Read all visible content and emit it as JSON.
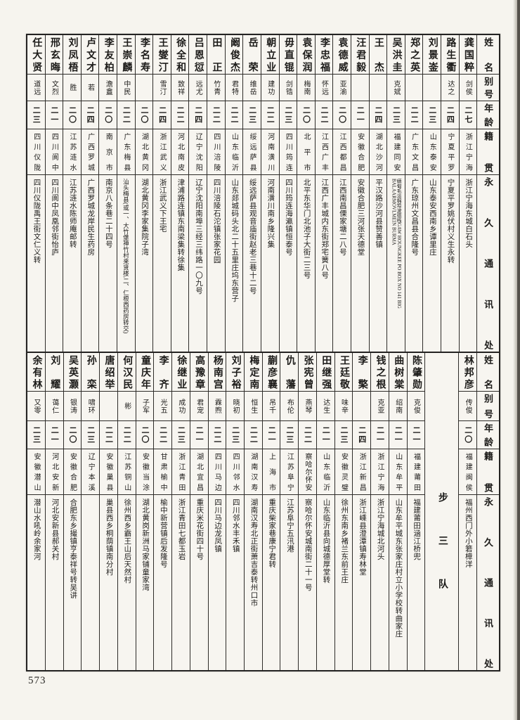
{
  "page_number": "573",
  "header_labels": {
    "name": "姓名",
    "alias": "别号",
    "age": "年龄",
    "native": "籍贯",
    "address": "永久通讯处"
  },
  "unit_divider": "步三队",
  "tables": [
    {
      "entries": [
        {
          "name": "龚国粹",
          "alias": "剑侯",
          "age": "二七",
          "native": "浙江宁海",
          "address": "浙江宁海东城白石头"
        },
        {
          "name": "路生衢",
          "alias": "达之",
          "age": "二四",
          "native": "宁夏平罗",
          "address": "宁夏平罗姚伏村义生永转"
        },
        {
          "name": "刘景崟",
          "alias": "",
          "age": "二三",
          "native": "山东泰安",
          "address": "山东泰安西南乡谭里庄"
        },
        {
          "name": "郑之英",
          "alias": "",
          "age": "二二",
          "native": "广东文昌",
          "address": "广东琼州文昌县合隆号"
        },
        {
          "name": "吴洪圭",
          "alias": "克斌",
          "age": "二三",
          "native": "福建同安",
          "address": "缅甸毛淡棉埠波德栈GAW HOUNGKEE PO BOX NO 141 BIG BALAARMOVLMEIN BURMA"
        },
        {
          "name": "王杰",
          "alias": "",
          "age": "二四",
          "native": "湖北沙河",
          "address": "平汉路沙河县赞善镇"
        },
        {
          "name": "汪君毅",
          "alias": "",
          "age": "二一",
          "native": "安徽合肥",
          "address": "安徽合肥三河张天德堂"
        },
        {
          "name": "袁德威",
          "alias": "亚渝",
          "age": "二〇",
          "native": "江西都昌",
          "address": "江西南昌傈家塘二八号"
        },
        {
          "name": "李忠福",
          "alias": "怀远",
          "age": "二二",
          "native": "江西广丰",
          "address": "江西广丰城内东街郑宅簧八号"
        },
        {
          "name": "袁保润",
          "alias": "梅南",
          "age": "二〇",
          "native": "北平市",
          "address": "北平东华门北池子大街二三号"
        },
        {
          "name": "毋直锟",
          "alias": "剑锆",
          "age": "二三",
          "native": "四川筠连",
          "address": "四川筠连海瀛镇恒泰号"
        },
        {
          "name": "朝立业",
          "alias": "建功",
          "age": "二二",
          "native": "河南潢川",
          "address": "河南潢川南乡隆兴集"
        },
        {
          "name": "岳荣",
          "alias": "维岳",
          "age": "二三",
          "native": "绥远萨县",
          "address": "绥远萨县观音庙街赵老三巷十二号"
        },
        {
          "name": "阚俊杰",
          "alias": "君特",
          "age": "二二",
          "native": "山东临沂",
          "address": "山东郯城码头北二十五里庄坞东营子"
        },
        {
          "name": "田正",
          "alias": "竹青",
          "age": "二二",
          "native": "四川涪陵",
          "address": "四川涪陵石沱镇张家花园"
        },
        {
          "name": "吕恩愆",
          "alias": "远尤",
          "age": "二四",
          "native": "辽宁沈阳",
          "address": "辽宁沈阳南埠三经三纬路一〇九号"
        },
        {
          "name": "徐全和",
          "alias": "致祥",
          "age": "二二",
          "native": "河北南皮",
          "address": "津浦路连镇东南梁集转徐集"
        },
        {
          "name": "王燮汀",
          "alias": "雪汀",
          "age": "二四",
          "native": "浙江武义",
          "address": "浙江武义下王宅"
        },
        {
          "name": "李名寿",
          "alias": "",
          "age": "二〇",
          "native": "湖北黄冈",
          "address": "湖北黄冈李家集院子湾"
        },
        {
          "name": "王崇麟",
          "alias": "中民",
          "age": "二二",
          "native": "广东梅县",
          "address": "汕头梅县(或一、大竹堡神竹村来贤楼,二、仁根西药房转交)"
        },
        {
          "name": "李友柏",
          "alias": "澹盫",
          "age": "二〇",
          "native": "南京市",
          "address": "南京八条巷二十四号"
        },
        {
          "name": "卢文才",
          "alias": "若",
          "age": "二四",
          "native": "广西罗城",
          "address": "广西罗城龙岸民生药房"
        },
        {
          "name": "刘凤梧",
          "alias": "胜",
          "age": "二〇",
          "native": "江苏涟水",
          "address": "江苏涟水陈师庵邮转"
        },
        {
          "name": "邢玄晦",
          "alias": "文烈",
          "age": "二一",
          "native": "四川阆中",
          "address": "四川阆中凤凰邻街怡庐"
        },
        {
          "name": "任大贤",
          "alias": "道远",
          "age": "二三",
          "native": "四川仪陇",
          "address": "四川仪陇禹王街文仁义转"
        }
      ]
    },
    {
      "entries": [
        {
          "name": "林邦彦",
          "alias": "传俊",
          "age": "二〇",
          "native": "福建闽侯",
          "address": "福州西门外小箬樟洋"
        },
        {
          "type": "divider"
        },
        {
          "name": "陈肇勋",
          "alias": "克俊",
          "age": "二一",
          "native": "福建莆田",
          "address": "福建莆田涵江桥兜"
        },
        {
          "name": "曲树棠",
          "alias": "绍南",
          "age": "二一",
          "native": "山东牟平",
          "address": "山东牟平城东张家庄村立小学校转曲家庄"
        },
        {
          "name": "钱之根",
          "alias": "克亚",
          "age": "二一",
          "native": "浙江宁海",
          "address": "浙江宁海城北河头"
        },
        {
          "name": "李檠",
          "alias": "",
          "age": "二四",
          "native": "浙江新昌",
          "address": "浙江嵊县澄潭镇寿林堂"
        },
        {
          "name": "王廷敬",
          "alias": "味辛",
          "age": "二三",
          "native": "安徽灵璧",
          "address": "徐州东南乡褚兰东前王庄"
        },
        {
          "name": "田继强",
          "alias": "达生",
          "age": "二一",
          "native": "山东临沂",
          "address": "山东临沂县向城德厚堂转"
        },
        {
          "name": "张宪曾",
          "alias": "燕琴",
          "age": "二二",
          "native": "察哈尔怀安",
          "address": "察哈尔怀安城南街二十一号"
        },
        {
          "name": "仇藩",
          "alias": "布伦",
          "age": "二三",
          "native": "江苏阜宁",
          "address": "江苏阜宁五汛港"
        },
        {
          "name": "蒯彦襄",
          "alias": "吊千",
          "age": "二一",
          "native": "上海市",
          "address": "重庆柴家巷康宁君转"
        },
        {
          "name": "梅定南",
          "alias": "恒生",
          "age": "二二",
          "native": "湖南汉寿",
          "address": "湖南汉寿北正街萧吉泰转州口市"
        },
        {
          "name": "刘子裕",
          "alias": "晓初",
          "age": "二三",
          "native": "四川邻水",
          "address": "四川邻水丰禾镇"
        },
        {
          "name": "杨南宫",
          "alias": "霖煦",
          "age": "二二",
          "native": "四川马边",
          "address": "四川马边龙凤镇"
        },
        {
          "name": "高豫章",
          "alias": "君宠",
          "age": "二一",
          "native": "湖北宜昌",
          "address": "重庆米花街四十号"
        },
        {
          "name": "徐继业",
          "alias": "成功",
          "age": "二三",
          "native": "浙江青田",
          "address": "浙江青田七都玉岩"
        },
        {
          "name": "李齐",
          "alias": "光五",
          "age": "二二",
          "native": "甘肃榆中",
          "address": "榆中新营镇后发隆号"
        },
        {
          "name": "童庆年",
          "alias": "子军",
          "age": "二〇",
          "native": "安徽当涂",
          "address": "湖北黄岗新洲马家铺童家湾"
        },
        {
          "name": "何汉民",
          "alias": "彬",
          "age": "二二",
          "native": "江苏铜山",
          "address": "徐州西乡霸王山后天然村"
        },
        {
          "name": "唐绍举",
          "alias": "",
          "age": "二二",
          "native": "安徽巢县",
          "address": "巢县西乡桐荫镇南分村"
        },
        {
          "name": "孙栾",
          "alias": "啸环",
          "age": "二三",
          "native": "辽宁本溪",
          "address": ""
        },
        {
          "name": "吴英灏",
          "alias": "银涛",
          "age": "二〇",
          "native": "安徽合肥",
          "address": "合肥东乡撮镇亨泰祥号转吴讲"
        },
        {
          "name": "刘耀",
          "alias": "蔼仁",
          "age": "二一",
          "native": "河北安新",
          "address": "河北安新县郝关村"
        },
        {
          "name": "余有林",
          "alias": "又零",
          "age": "二三",
          "native": "安徽潜山",
          "address": "潜山水吼岭余家河"
        }
      ]
    }
  ]
}
